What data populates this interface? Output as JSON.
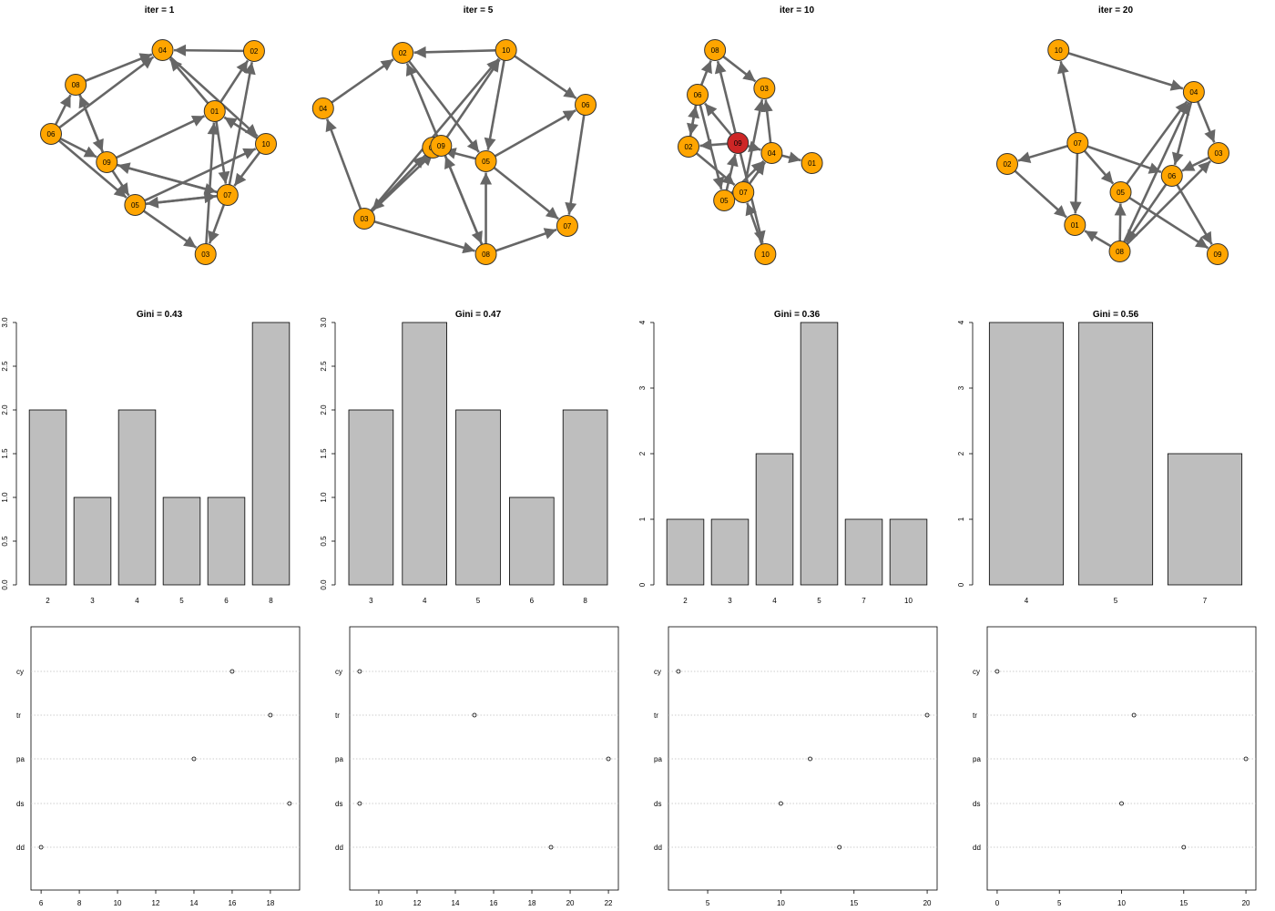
{
  "colors": {
    "node_fill": "#ffa500",
    "node_highlight": "#cd2626",
    "edge": "#666666",
    "bar_fill": "#bebebe",
    "grid_dotted": "#bebebe"
  },
  "chart_data": [
    {
      "type": "network",
      "title": "iter = 1",
      "nodes": [
        {
          "id": "01",
          "x": 2.36,
          "y": 1.22
        },
        {
          "id": "02",
          "x": 2.79,
          "y": 0.56
        },
        {
          "id": "03",
          "x": 2.26,
          "y": 2.79
        },
        {
          "id": "04",
          "x": 1.79,
          "y": 0.55
        },
        {
          "id": "05",
          "x": 1.49,
          "y": 2.25
        },
        {
          "id": "06",
          "x": 0.57,
          "y": 1.47
        },
        {
          "id": "07",
          "x": 2.5,
          "y": 2.14
        },
        {
          "id": "08",
          "x": 0.84,
          "y": 0.93
        },
        {
          "id": "09",
          "x": 1.18,
          "y": 1.78
        },
        {
          "id": "10",
          "x": 2.92,
          "y": 1.58
        }
      ],
      "edges": [
        [
          "02",
          "04"
        ],
        [
          "06",
          "04"
        ],
        [
          "08",
          "04"
        ],
        [
          "01",
          "04"
        ],
        [
          "04",
          "10"
        ],
        [
          "01",
          "02"
        ],
        [
          "07",
          "02"
        ],
        [
          "09",
          "01"
        ],
        [
          "03",
          "01"
        ],
        [
          "01",
          "07"
        ],
        [
          "10",
          "01"
        ],
        [
          "06",
          "08"
        ],
        [
          "08",
          "09"
        ],
        [
          "09",
          "08"
        ],
        [
          "06",
          "09"
        ],
        [
          "06",
          "05"
        ],
        [
          "09",
          "05"
        ],
        [
          "09",
          "07"
        ],
        [
          "07",
          "09"
        ],
        [
          "10",
          "07"
        ],
        [
          "05",
          "10"
        ],
        [
          "05",
          "07"
        ],
        [
          "07",
          "05"
        ],
        [
          "05",
          "03"
        ],
        [
          "07",
          "03"
        ]
      ]
    },
    {
      "type": "network",
      "title": "iter = 5",
      "nodes": [
        {
          "id": "01",
          "x": 1.26,
          "y": 1.62
        },
        {
          "id": "02",
          "x": 0.93,
          "y": 0.58
        },
        {
          "id": "03",
          "x": 0.51,
          "y": 2.4
        },
        {
          "id": "04",
          "x": 0.06,
          "y": 1.19
        },
        {
          "id": "05",
          "x": 1.84,
          "y": 1.77
        },
        {
          "id": "06",
          "x": 2.93,
          "y": 1.15
        },
        {
          "id": "07",
          "x": 2.73,
          "y": 2.48
        },
        {
          "id": "08",
          "x": 1.84,
          "y": 2.79
        },
        {
          "id": "09",
          "x": 1.35,
          "y": 1.6
        },
        {
          "id": "10",
          "x": 2.06,
          "y": 0.55
        }
      ],
      "edges": [
        [
          "04",
          "02"
        ],
        [
          "10",
          "02"
        ],
        [
          "03",
          "04"
        ],
        [
          "09",
          "02"
        ],
        [
          "02",
          "05"
        ],
        [
          "10",
          "06"
        ],
        [
          "03",
          "10"
        ],
        [
          "09",
          "10"
        ],
        [
          "10",
          "05"
        ],
        [
          "09",
          "01"
        ],
        [
          "05",
          "01"
        ],
        [
          "03",
          "09"
        ],
        [
          "03",
          "01"
        ],
        [
          "08",
          "09"
        ],
        [
          "09",
          "08"
        ],
        [
          "03",
          "08"
        ],
        [
          "08",
          "05"
        ],
        [
          "05",
          "06"
        ],
        [
          "05",
          "07"
        ],
        [
          "06",
          "07"
        ],
        [
          "08",
          "07"
        ],
        [
          "01",
          "03"
        ]
      ]
    },
    {
      "type": "network",
      "title": "iter = 10",
      "nodes": [
        {
          "id": "01",
          "x": 1.92,
          "y": 1.79
        },
        {
          "id": "02",
          "x": 0.57,
          "y": 1.61
        },
        {
          "id": "03",
          "x": 1.4,
          "y": 0.97
        },
        {
          "id": "04",
          "x": 1.48,
          "y": 1.68
        },
        {
          "id": "05",
          "x": 0.96,
          "y": 2.2
        },
        {
          "id": "06",
          "x": 0.67,
          "y": 1.04
        },
        {
          "id": "07",
          "x": 1.17,
          "y": 2.11
        },
        {
          "id": "08",
          "x": 0.86,
          "y": 0.55
        },
        {
          "id": "09",
          "x": 1.11,
          "y": 1.57
        },
        {
          "id": "10",
          "x": 1.41,
          "y": 2.79
        }
      ],
      "edges": [
        [
          "06",
          "08"
        ],
        [
          "08",
          "03"
        ],
        [
          "09",
          "08"
        ],
        [
          "09",
          "06"
        ],
        [
          "02",
          "06"
        ],
        [
          "06",
          "02"
        ],
        [
          "09",
          "02"
        ],
        [
          "02",
          "07"
        ],
        [
          "05",
          "09"
        ],
        [
          "05",
          "07"
        ],
        [
          "06",
          "05"
        ],
        [
          "07",
          "03"
        ],
        [
          "07",
          "04"
        ],
        [
          "04",
          "03"
        ],
        [
          "09",
          "04"
        ],
        [
          "04",
          "01"
        ],
        [
          "10",
          "07"
        ],
        [
          "09",
          "10"
        ],
        [
          "05",
          "04"
        ]
      ]
    },
    {
      "type": "network",
      "title": "iter = 20",
      "nodes": [
        {
          "id": "01",
          "x": 1.31,
          "y": 2.47
        },
        {
          "id": "02",
          "x": 0.57,
          "y": 1.8
        },
        {
          "id": "03",
          "x": 2.88,
          "y": 1.68
        },
        {
          "id": "04",
          "x": 2.61,
          "y": 1.01
        },
        {
          "id": "05",
          "x": 1.81,
          "y": 2.11
        },
        {
          "id": "06",
          "x": 2.37,
          "y": 1.93
        },
        {
          "id": "07",
          "x": 1.34,
          "y": 1.57
        },
        {
          "id": "08",
          "x": 1.8,
          "y": 2.76
        },
        {
          "id": "09",
          "x": 2.87,
          "y": 2.79
        },
        {
          "id": "10",
          "x": 1.13,
          "y": 0.55
        }
      ],
      "edges": [
        [
          "07",
          "10"
        ],
        [
          "10",
          "04"
        ],
        [
          "07",
          "02"
        ],
        [
          "02",
          "01"
        ],
        [
          "07",
          "01"
        ],
        [
          "07",
          "05"
        ],
        [
          "07",
          "06"
        ],
        [
          "05",
          "04"
        ],
        [
          "04",
          "06"
        ],
        [
          "04",
          "03"
        ],
        [
          "06",
          "08"
        ],
        [
          "03",
          "06"
        ],
        [
          "08",
          "05"
        ],
        [
          "05",
          "09"
        ],
        [
          "06",
          "09"
        ],
        [
          "08",
          "01"
        ],
        [
          "08",
          "03"
        ],
        [
          "08",
          "04"
        ]
      ],
      "highlight": []
    },
    {
      "type": "bar",
      "title": "Gini = 0.43",
      "categories": [
        "2",
        "3",
        "4",
        "5",
        "6",
        "8"
      ],
      "values": [
        2,
        1,
        2,
        1,
        1,
        3
      ],
      "ylim": [
        0,
        3
      ],
      "yticks": [
        "0.0",
        "0.5",
        "1.0",
        "1.5",
        "2.0",
        "2.5",
        "3.0"
      ]
    },
    {
      "type": "bar",
      "title": "Gini = 0.47",
      "categories": [
        "3",
        "4",
        "5",
        "6",
        "8"
      ],
      "values": [
        2,
        3,
        2,
        1,
        2
      ],
      "ylim": [
        0,
        3
      ],
      "yticks": [
        "0.0",
        "0.5",
        "1.0",
        "1.5",
        "2.0",
        "2.5",
        "3.0"
      ]
    },
    {
      "type": "bar",
      "title": "Gini = 0.36",
      "categories": [
        "2",
        "3",
        "4",
        "5",
        "7",
        "10"
      ],
      "values": [
        1,
        1,
        2,
        4,
        1,
        1
      ],
      "ylim": [
        0,
        4
      ],
      "yticks": [
        "0",
        "1",
        "2",
        "3",
        "4"
      ]
    },
    {
      "type": "bar",
      "title": "Gini = 0.56",
      "categories": [
        "4",
        "5",
        "7"
      ],
      "values": [
        4,
        4,
        2
      ],
      "ylim": [
        0,
        4
      ],
      "yticks": [
        "0",
        "1",
        "2",
        "3",
        "4"
      ]
    },
    {
      "type": "dotchart",
      "labels": [
        "cy",
        "tr",
        "pa",
        "ds",
        "dd"
      ],
      "values": [
        16,
        18,
        14,
        19,
        6
      ],
      "xlim": [
        5.47,
        19.53
      ],
      "xticks": [
        "6",
        "8",
        "10",
        "12",
        "14",
        "16",
        "18"
      ]
    },
    {
      "type": "dotchart",
      "labels": [
        "cy",
        "tr",
        "pa",
        "ds",
        "dd"
      ],
      "values": [
        9,
        15,
        22,
        9,
        19
      ],
      "xlim": [
        8.48,
        22.52
      ],
      "xticks": [
        "10",
        "12",
        "14",
        "16",
        "18",
        "20",
        "22"
      ]
    },
    {
      "type": "dotchart",
      "labels": [
        "cy",
        "tr",
        "pa",
        "ds",
        "dd"
      ],
      "values": [
        3,
        20,
        12,
        10,
        14
      ],
      "xlim": [
        2.32,
        20.68
      ],
      "xticks": [
        "5",
        "10",
        "15",
        "20"
      ]
    },
    {
      "type": "dotchart",
      "labels": [
        "cy",
        "tr",
        "pa",
        "ds",
        "dd"
      ],
      "values": [
        0,
        11,
        20,
        10,
        15
      ],
      "xlim": [
        -0.8,
        20.8
      ],
      "xticks": [
        "0",
        "5",
        "10",
        "15",
        "20"
      ]
    }
  ],
  "highlight_nodes": [
    [],
    [],
    [
      "09"
    ],
    []
  ]
}
